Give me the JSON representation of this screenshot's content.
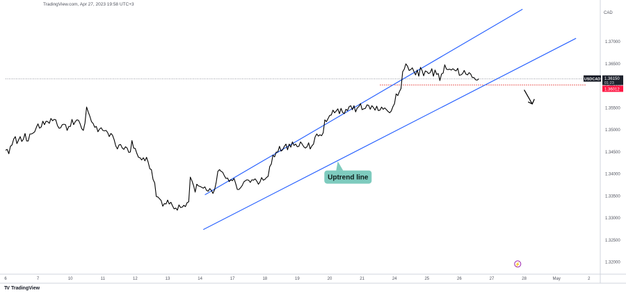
{
  "header": {
    "source_text": "TradingView.com, Apr 27, 2023 19:58 UTC+3"
  },
  "footer": {
    "brand": "TradingView",
    "brand_mark": "TV"
  },
  "colors": {
    "price_line": "#000000",
    "channel": "#2962ff",
    "support_dotted": "#e53935",
    "callout_bg": "#7ecbbe",
    "symbol_tag_bg": "#131722",
    "price_tag_bg": "#ff1744",
    "axis_text": "#50535e"
  },
  "chart_data": {
    "type": "line",
    "symbol": "USDCAD",
    "currency": "CAD",
    "last_price_label": "1.36150",
    "countdown": "01:23",
    "level_label": "1.36012",
    "level_value": 1.36012,
    "annotation": "Uptrend line",
    "ylim": [
      1.3175,
      1.3775
    ],
    "y_ticks": [
      "1.37000",
      "1.36500",
      "1.36000",
      "1.35500",
      "1.35000",
      "1.34500",
      "1.34000",
      "1.33500",
      "1.33000",
      "1.32500",
      "1.32000"
    ],
    "x_ticks": [
      "6",
      "7",
      "10",
      "11",
      "12",
      "13",
      "14",
      "17",
      "18",
      "19",
      "20",
      "21",
      "24",
      "25",
      "26",
      "27",
      "28",
      "May",
      "2"
    ],
    "x_tick_index": [
      0,
      1,
      2,
      3,
      4,
      5,
      6,
      7,
      8,
      9,
      10,
      11,
      12,
      13,
      14,
      15,
      16,
      17,
      18
    ],
    "price_x": [
      0.0,
      0.05,
      0.1,
      0.15,
      0.2,
      0.25,
      0.3,
      0.35,
      0.4,
      0.45,
      0.5,
      0.55,
      0.6,
      0.65,
      0.7,
      0.75,
      0.8,
      0.85,
      0.9,
      0.95,
      1.0,
      1.05,
      1.1,
      1.15,
      1.2,
      1.25,
      1.3,
      1.35,
      1.4,
      1.45,
      1.5,
      1.55,
      1.6,
      1.65,
      1.7,
      1.75,
      1.8,
      1.85,
      1.9,
      1.95,
      2.0,
      2.05,
      2.1,
      2.15,
      2.2,
      2.25,
      2.3,
      2.35,
      2.4,
      2.45,
      2.5,
      2.55,
      2.6,
      2.65,
      2.7,
      2.75,
      2.8,
      2.85,
      2.9,
      2.95,
      3.0,
      3.05,
      3.1,
      3.15,
      3.2,
      3.25,
      3.3,
      3.35,
      3.4,
      3.45,
      3.5,
      3.55,
      3.6,
      3.65,
      3.7,
      3.75,
      3.8,
      3.85,
      3.9,
      3.95,
      4.0,
      4.05,
      4.1,
      4.15,
      4.2,
      4.25,
      4.3,
      4.35,
      4.4,
      4.45,
      4.5,
      4.55,
      4.6,
      4.65,
      4.7,
      4.75,
      4.8,
      4.85,
      4.9,
      4.95,
      5.0,
      5.05,
      5.1,
      5.15,
      5.2,
      5.25,
      5.3,
      5.35,
      5.4,
      5.45,
      5.5,
      5.55,
      5.6,
      5.65,
      5.7,
      5.75,
      5.8,
      5.85,
      5.9,
      5.95,
      6.0,
      6.05,
      6.1,
      6.15,
      6.2,
      6.25,
      6.3,
      6.35,
      6.4,
      6.45,
      6.5,
      6.55,
      6.6,
      6.65,
      6.7,
      6.75,
      6.8,
      6.85,
      6.9,
      6.95,
      7.0,
      7.05,
      7.1,
      7.15,
      7.2,
      7.25,
      7.3,
      7.35,
      7.4,
      7.45,
      7.5,
      7.55,
      7.6,
      7.65,
      7.7,
      7.75,
      7.8,
      7.85,
      7.9,
      7.95,
      8.0,
      8.05,
      8.1,
      8.15,
      8.2,
      8.25,
      8.3,
      8.35,
      8.4,
      8.45,
      8.5,
      8.55,
      8.6,
      8.65,
      8.7,
      8.75,
      8.8,
      8.85,
      8.9,
      8.95,
      9.0,
      9.05,
      9.1,
      9.15,
      9.2,
      9.25,
      9.3,
      9.35,
      9.4,
      9.45,
      9.5,
      9.55,
      9.6,
      9.65,
      9.7,
      9.75,
      9.8,
      9.85,
      9.9,
      9.95,
      10.0,
      10.05,
      10.1,
      10.15,
      10.2,
      10.25,
      10.3,
      10.35,
      10.4,
      10.45,
      10.5,
      10.55,
      10.6,
      10.65,
      10.7,
      10.75,
      10.8,
      10.85,
      10.9,
      10.95,
      11.0,
      11.05,
      11.1,
      11.15,
      11.2,
      11.25,
      11.3,
      11.35,
      11.4,
      11.45,
      11.5,
      11.55,
      11.6,
      11.65,
      11.7,
      11.75,
      11.8,
      11.85,
      11.9,
      11.95,
      12.0,
      12.05,
      12.1,
      12.15,
      12.2,
      12.25,
      12.3,
      12.35,
      12.4,
      12.45,
      12.5,
      12.55,
      12.6,
      12.65,
      12.7,
      12.75,
      12.8,
      12.85,
      12.9,
      12.95,
      13.0,
      13.05,
      13.1,
      13.15,
      13.2,
      13.25,
      13.3,
      13.35,
      13.4,
      13.45,
      13.5,
      13.55,
      13.6,
      13.65,
      13.7,
      13.75,
      13.8,
      13.85,
      13.9,
      13.95,
      14.0,
      14.05,
      14.1,
      14.15,
      14.2,
      14.25,
      14.3,
      14.35,
      14.4,
      14.45,
      14.5,
      14.55,
      14.6,
      14.65,
      14.7,
      14.75,
      14.8,
      14.85,
      14.9,
      14.95,
      15.0,
      15.05,
      15.1,
      15.15,
      15.2,
      15.25,
      15.3,
      15.35,
      15.4,
      15.45,
      15.5,
      15.55,
      15.6,
      15.65,
      15.7,
      15.75,
      15.8,
      15.85
    ],
    "price_y": [
      1.3453,
      1.3455,
      1.3445,
      1.3462,
      1.3465,
      1.3478,
      1.3484,
      1.3468,
      1.3476,
      1.3484,
      1.3473,
      1.3478,
      1.3491,
      1.3474,
      1.3474,
      1.349,
      1.349,
      1.3492,
      1.3495,
      1.3505,
      1.3513,
      1.3503,
      1.3506,
      1.3519,
      1.3511,
      1.3519,
      1.3518,
      1.3514,
      1.3525,
      1.352,
      1.3523,
      1.3522,
      1.3509,
      1.3503,
      1.3504,
      1.3511,
      1.3512,
      1.3511,
      1.3498,
      1.3507,
      1.3507,
      1.3523,
      1.3511,
      1.3518,
      1.3522,
      1.3521,
      1.3513,
      1.3502,
      1.3498,
      1.3515,
      1.3551,
      1.354,
      1.353,
      1.3518,
      1.3514,
      1.3505,
      1.3507,
      1.3495,
      1.3501,
      1.3504,
      1.3498,
      1.3497,
      1.3498,
      1.3493,
      1.3484,
      1.3491,
      1.3487,
      1.3477,
      1.3463,
      1.3456,
      1.3465,
      1.3466,
      1.3458,
      1.3455,
      1.3461,
      1.3458,
      1.3448,
      1.3449,
      1.3475,
      1.3458,
      1.3457,
      1.3446,
      1.3437,
      1.3436,
      1.3431,
      1.3436,
      1.3429,
      1.3437,
      1.3426,
      1.3411,
      1.3409,
      1.3387,
      1.3379,
      1.3348,
      1.3347,
      1.3343,
      1.3339,
      1.3326,
      1.3332,
      1.3331,
      1.334,
      1.3331,
      1.3335,
      1.3327,
      1.332,
      1.3322,
      1.3317,
      1.3329,
      1.3323,
      1.3324,
      1.3328,
      1.3325,
      1.3334,
      1.3336,
      1.3392,
      1.3384,
      1.3373,
      1.3358,
      1.3376,
      1.3372,
      1.3371,
      1.3369,
      1.3367,
      1.337,
      1.3362,
      1.336,
      1.3366,
      1.3362,
      1.3355,
      1.3364,
      1.3381,
      1.3405,
      1.3409,
      1.3405,
      1.3403,
      1.3395,
      1.3389,
      1.339,
      1.3382,
      1.3386,
      1.3384,
      1.3389,
      1.3377,
      1.3364,
      1.3364,
      1.3368,
      1.3373,
      1.3381,
      1.3384,
      1.3386,
      1.3385,
      1.338,
      1.3386,
      1.3385,
      1.3388,
      1.3383,
      1.3376,
      1.3381,
      1.3391,
      1.3385,
      1.3387,
      1.3391,
      1.3394,
      1.3416,
      1.3422,
      1.3442,
      1.3438,
      1.3449,
      1.3449,
      1.3462,
      1.3451,
      1.3454,
      1.3462,
      1.3467,
      1.3454,
      1.3467,
      1.346,
      1.3472,
      1.3464,
      1.3467,
      1.3461,
      1.3462,
      1.3472,
      1.3467,
      1.3461,
      1.3458,
      1.3461,
      1.347,
      1.3456,
      1.3463,
      1.3467,
      1.3483,
      1.349,
      1.3485,
      1.3488,
      1.3486,
      1.3493,
      1.3522,
      1.3518,
      1.3525,
      1.3532,
      1.3533,
      1.3544,
      1.3538,
      1.3542,
      1.3547,
      1.3536,
      1.3548,
      1.3539,
      1.3536,
      1.3546,
      1.3543,
      1.3552,
      1.3554,
      1.3545,
      1.3554,
      1.354,
      1.3549,
      1.3552,
      1.3559,
      1.3545,
      1.3547,
      1.3548,
      1.3556,
      1.3555,
      1.3546,
      1.3554,
      1.355,
      1.3544,
      1.3553,
      1.3543,
      1.3544,
      1.3551,
      1.3546,
      1.3549,
      1.3545,
      1.3541,
      1.3538,
      1.3542,
      1.3552,
      1.3559,
      1.3581,
      1.3577,
      1.3586,
      1.3593,
      1.3631,
      1.3637,
      1.3649,
      1.3644,
      1.3634,
      1.3636,
      1.364,
      1.3631,
      1.3624,
      1.3635,
      1.3621,
      1.3641,
      1.3634,
      1.3622,
      1.3633,
      1.3631,
      1.3627,
      1.3629,
      1.3638,
      1.3621,
      1.3635,
      1.3625,
      1.3627,
      1.3611,
      1.3626,
      1.3628,
      1.3647,
      1.3637,
      1.3636,
      1.3637,
      1.3635,
      1.3638,
      1.3635,
      1.3633,
      1.3639,
      1.3623,
      1.3624,
      1.3627,
      1.3634,
      1.3626,
      1.3624,
      1.3629,
      1.3626,
      1.3618,
      1.3618,
      1.3613,
      1.3612,
      1.3615
    ],
    "channel_upper": {
      "x": [
        6.15,
        15.95
      ],
      "y": [
        1.3352,
        1.3773
      ]
    },
    "channel_lower": {
      "x": [
        6.1,
        17.6
      ],
      "y": [
        1.3273,
        1.3707
      ]
    },
    "support_line": {
      "x": [
        11.55,
        17.6
      ],
      "y": [
        1.36012,
        1.36012
      ]
    },
    "current_line": {
      "x": [
        0.0,
        17.6
      ],
      "y": [
        1.3615,
        1.3615
      ]
    },
    "callout_anchor": {
      "x": 10.25,
      "y": 1.3428
    },
    "callout_box": {
      "x": 10.5,
      "y": 1.3393
    },
    "arrow": {
      "x": [
        16.0,
        16.25
      ],
      "y": [
        1.359,
        1.3558
      ]
    },
    "event_marker": {
      "x": 15.8,
      "y": 1.3195,
      "icon": "lightning-icon"
    },
    "grid": false
  }
}
